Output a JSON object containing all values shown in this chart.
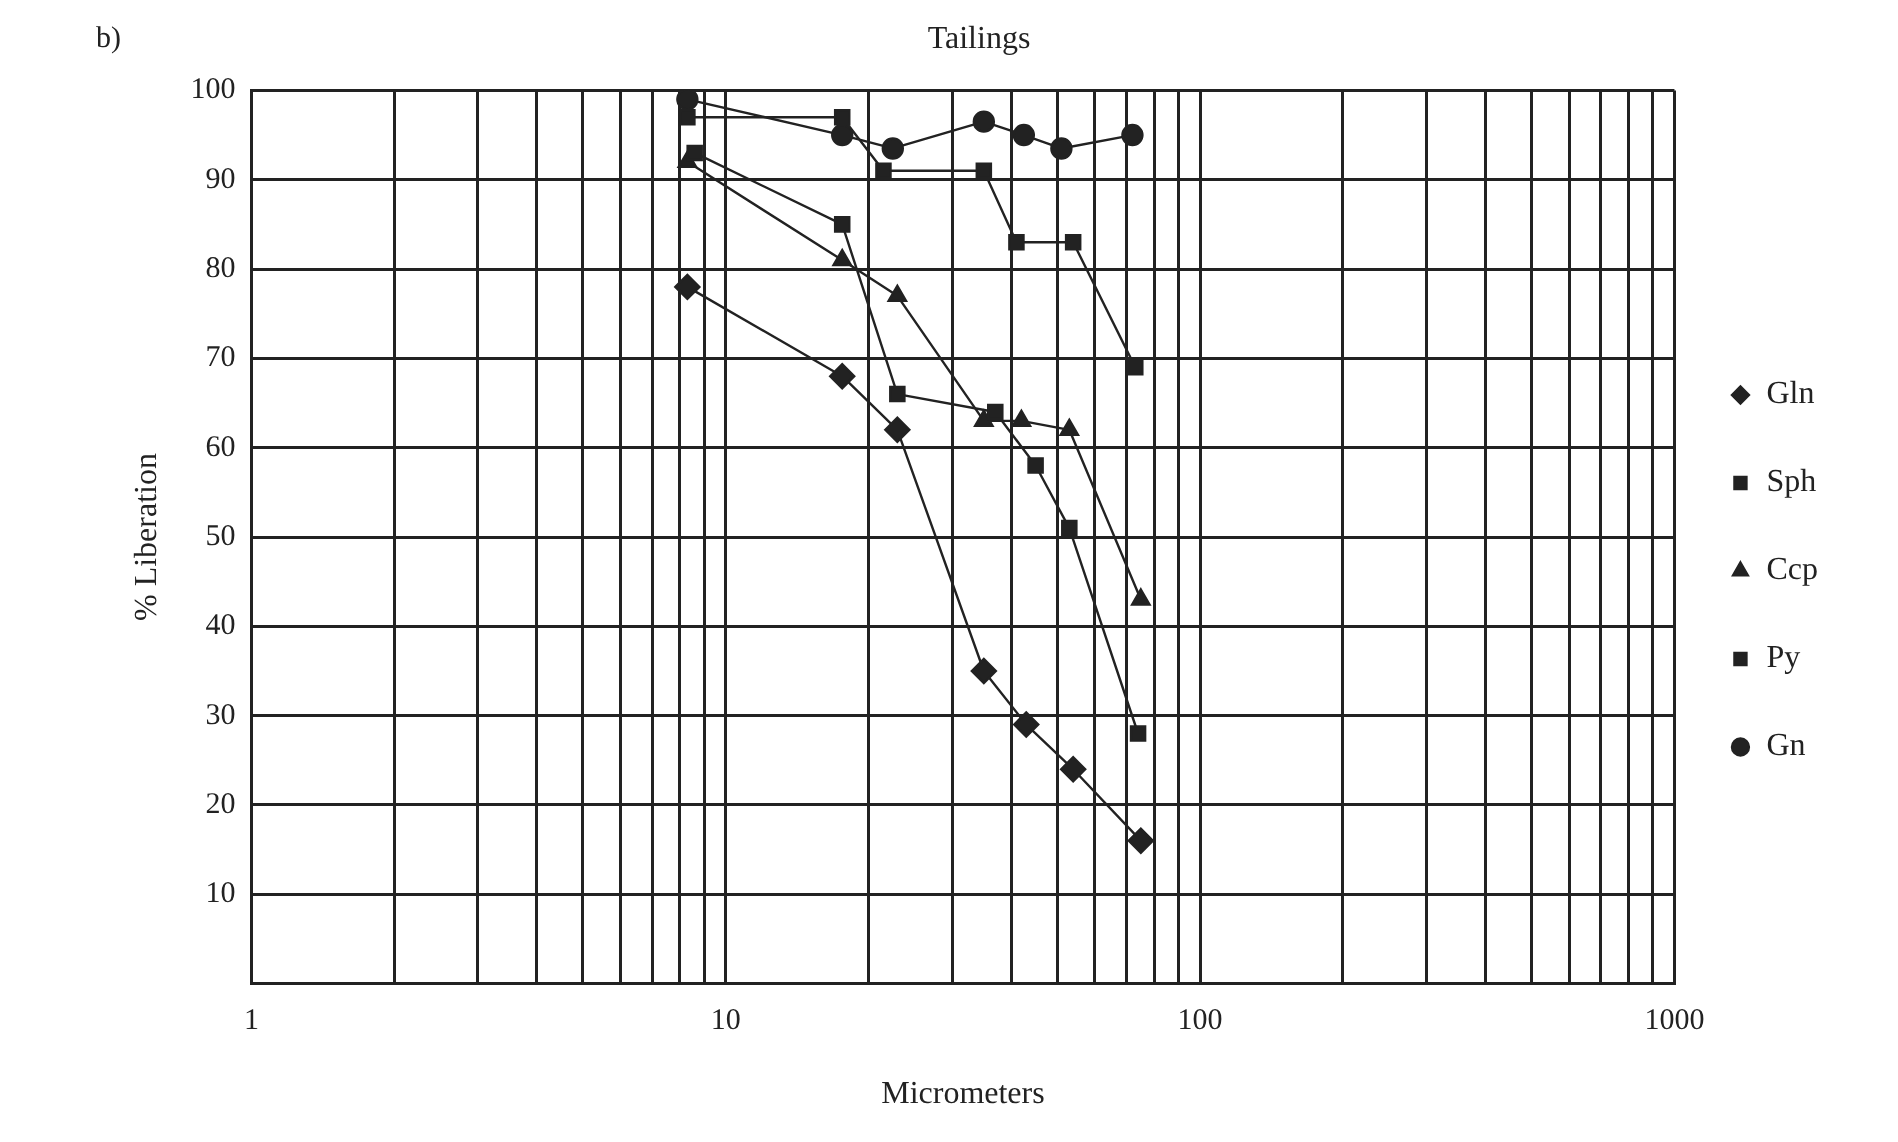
{
  "chart_data": {
    "type": "line",
    "title": "Tailings",
    "xlabel": "Micrometers",
    "ylabel": "% Liberation",
    "annotations": [
      "b)"
    ],
    "log": "x",
    "grid": true,
    "legend": "right",
    "xlim": [
      1,
      1000
    ],
    "xticks": [
      1,
      {
        "value": 2,
        "label": null
      },
      {
        "value": 3,
        "label": null
      },
      {
        "value": 4,
        "label": null
      },
      {
        "value": 5,
        "label": null
      },
      {
        "value": 6,
        "label": null
      },
      {
        "value": 7,
        "label": null
      },
      {
        "value": 8,
        "label": null
      },
      {
        "value": 9,
        "label": null
      },
      10,
      {
        "value": 20,
        "label": null
      },
      {
        "value": 30,
        "label": null
      },
      {
        "value": 40,
        "label": null
      },
      {
        "value": 50,
        "label": null
      },
      {
        "value": 60,
        "label": null
      },
      {
        "value": 70,
        "label": null
      },
      {
        "value": 80,
        "label": null
      },
      {
        "value": 90,
        "label": null
      },
      100,
      {
        "value": 200,
        "label": null
      },
      {
        "value": 300,
        "label": null
      },
      {
        "value": 400,
        "label": null
      },
      {
        "value": 500,
        "label": null
      },
      {
        "value": 600,
        "label": null
      },
      {
        "value": 700,
        "label": null
      },
      {
        "value": 800,
        "label": null
      },
      {
        "value": 900,
        "label": null
      },
      1000
    ],
    "ylim": [
      0,
      100
    ],
    "yticks": [
      10,
      20,
      30,
      40,
      50,
      60,
      70,
      80,
      90,
      100
    ],
    "line_style": "solid",
    "series": [
      {
        "name": "Gln",
        "color": "#222222",
        "marker": "diamond",
        "x": [
          8.3,
          17.6,
          23,
          35,
          43,
          54,
          75
        ],
        "values": [
          78,
          68,
          62,
          35,
          29,
          24,
          16
        ]
      },
      {
        "name": "Sph",
        "color": "#222222",
        "marker": "square",
        "x": [
          8.6,
          17.6,
          23,
          37,
          45,
          53,
          74
        ],
        "values": [
          93,
          85,
          66,
          64,
          58,
          51,
          28
        ]
      },
      {
        "name": "Ccp",
        "color": "#222222",
        "marker": "triangle",
        "x": [
          8.3,
          17.6,
          23,
          35,
          42,
          53,
          75
        ],
        "values": [
          92,
          81,
          77,
          63,
          63,
          62,
          43
        ]
      },
      {
        "name": "Py",
        "color": "#222222",
        "marker": "square",
        "x": [
          8.3,
          17.6,
          21.5,
          35,
          41,
          54,
          73
        ],
        "values": [
          97,
          97,
          91,
          91,
          83,
          83,
          69
        ]
      },
      {
        "name": "Gn",
        "color": "#222222",
        "marker": "circle",
        "x": [
          8.3,
          17.6,
          22.5,
          35,
          42.5,
          51,
          72
        ],
        "values": [
          99,
          95,
          93.5,
          96.5,
          95,
          93.5,
          95
        ]
      }
    ]
  }
}
